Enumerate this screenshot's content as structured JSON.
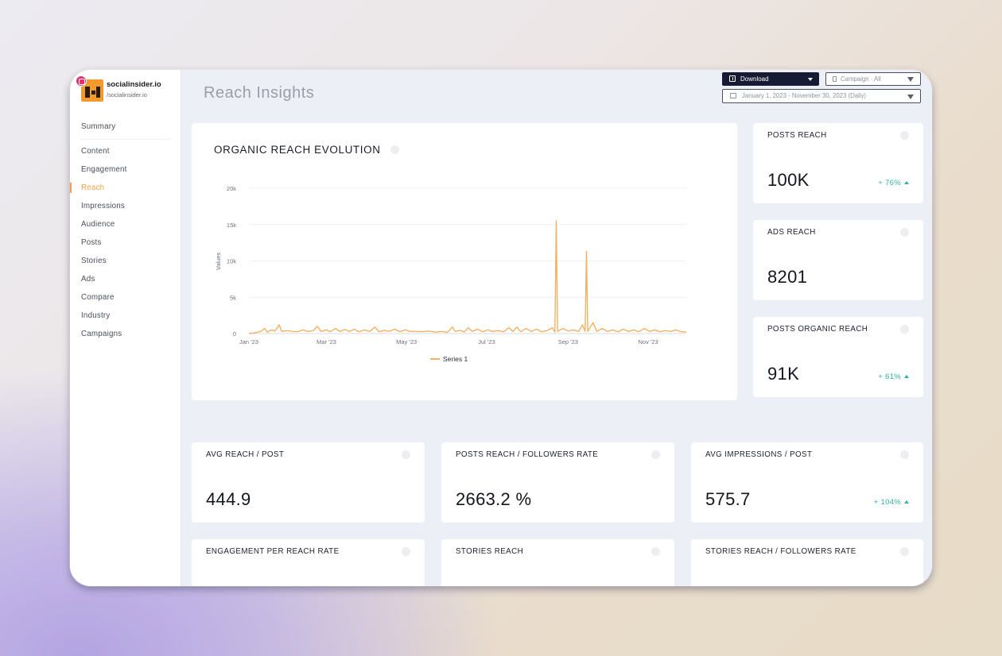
{
  "page": {
    "title": "Reach Insights",
    "accent_color": "#f0a346"
  },
  "profile": {
    "name": "socialinsider.io",
    "handle": "/socialinsider.io",
    "network_icon": "instagram-icon"
  },
  "sidebar": {
    "items": [
      {
        "label": "Summary"
      },
      {
        "label": "Content"
      },
      {
        "label": "Engagement"
      },
      {
        "label": "Reach",
        "active": true
      },
      {
        "label": "Impressions"
      },
      {
        "label": "Audience"
      },
      {
        "label": "Posts"
      },
      {
        "label": "Stories"
      },
      {
        "label": "Ads"
      },
      {
        "label": "Compare"
      },
      {
        "label": "Industry"
      },
      {
        "label": "Campaigns"
      }
    ]
  },
  "toolbar": {
    "download_label": "Download",
    "campaign_value": "Campaign · All",
    "date_range_value": "January 1, 2023 - November 30, 2023 (Daily)"
  },
  "metrics": {
    "posts_reach": {
      "title": "POSTS REACH",
      "value": "100K",
      "change": "+ 76%"
    },
    "ads_reach": {
      "title": "ADS REACH",
      "value": "8201"
    },
    "posts_organic_reach": {
      "title": "POSTS ORGANIC REACH",
      "value": "91K",
      "change": "+ 61%"
    },
    "avg_reach_post": {
      "title": "AVG REACH / POST",
      "value": "444.9"
    },
    "posts_reach_followers_rate": {
      "title": "POSTS REACH / FOLLOWERS RATE",
      "value": "2663.2 %"
    },
    "avg_impressions_post": {
      "title": "AVG IMPRESSIONS / POST",
      "value": "575.7",
      "change": "+ 104%"
    },
    "engagement_per_reach_rate": {
      "title": "ENGAGEMENT PER REACH RATE"
    },
    "stories_reach": {
      "title": "STORIES REACH"
    },
    "stories_reach_followers_rate": {
      "title": "STORIES REACH / FOLLOWERS RATE"
    }
  },
  "chart_data": {
    "type": "line",
    "title": "ORGANIC REACH EVOLUTION",
    "ylabel": "Values",
    "xlabel": "",
    "ylim": [
      0,
      20000
    ],
    "y_ticks": [
      "0",
      "5k",
      "10k",
      "15k",
      "20k"
    ],
    "x_tick_labels": [
      "Jan '23",
      "Mar '23",
      "May '23",
      "Jul '23",
      "Sep '23",
      "Nov '23"
    ],
    "x_tick_dates": [
      "2023-01-01",
      "2023-03-01",
      "2023-05-01",
      "2023-07-01",
      "2023-09-01",
      "2023-11-01"
    ],
    "x_range": [
      "2023-01-01",
      "2023-11-30"
    ],
    "grid": true,
    "legend_position": "bottom",
    "line_color": "#f3b062",
    "series": [
      {
        "name": "Series 1",
        "points": [
          [
            "2023-01-01",
            0
          ],
          [
            "2023-01-06",
            120
          ],
          [
            "2023-01-10",
            300
          ],
          [
            "2023-01-13",
            700
          ],
          [
            "2023-01-15",
            200
          ],
          [
            "2023-01-18",
            500
          ],
          [
            "2023-01-21",
            350
          ],
          [
            "2023-01-24",
            1200
          ],
          [
            "2023-01-26",
            300
          ],
          [
            "2023-01-30",
            400
          ],
          [
            "2023-02-03",
            300
          ],
          [
            "2023-02-07",
            250
          ],
          [
            "2023-02-11",
            500
          ],
          [
            "2023-02-15",
            300
          ],
          [
            "2023-02-19",
            400
          ],
          [
            "2023-02-22",
            1000
          ],
          [
            "2023-02-25",
            300
          ],
          [
            "2023-03-01",
            500
          ],
          [
            "2023-03-04",
            250
          ],
          [
            "2023-03-08",
            700
          ],
          [
            "2023-03-11",
            300
          ],
          [
            "2023-03-15",
            550
          ],
          [
            "2023-03-19",
            300
          ],
          [
            "2023-03-22",
            600
          ],
          [
            "2023-03-26",
            250
          ],
          [
            "2023-03-30",
            500
          ],
          [
            "2023-04-03",
            300
          ],
          [
            "2023-04-07",
            900
          ],
          [
            "2023-04-10",
            250
          ],
          [
            "2023-04-14",
            450
          ],
          [
            "2023-04-18",
            300
          ],
          [
            "2023-04-22",
            600
          ],
          [
            "2023-04-26",
            250
          ],
          [
            "2023-04-30",
            500
          ],
          [
            "2023-05-04",
            300
          ],
          [
            "2023-05-08",
            300
          ],
          [
            "2023-05-13",
            250
          ],
          [
            "2023-05-18",
            350
          ],
          [
            "2023-05-23",
            200
          ],
          [
            "2023-05-28",
            300
          ],
          [
            "2023-06-01",
            150
          ],
          [
            "2023-06-05",
            900
          ],
          [
            "2023-06-07",
            300
          ],
          [
            "2023-06-11",
            450
          ],
          [
            "2023-06-14",
            200
          ],
          [
            "2023-06-17",
            800
          ],
          [
            "2023-06-20",
            300
          ],
          [
            "2023-06-24",
            600
          ],
          [
            "2023-06-28",
            250
          ],
          [
            "2023-07-02",
            500
          ],
          [
            "2023-07-05",
            300
          ],
          [
            "2023-07-10",
            400
          ],
          [
            "2023-07-14",
            250
          ],
          [
            "2023-07-18",
            800
          ],
          [
            "2023-07-21",
            300
          ],
          [
            "2023-07-24",
            900
          ],
          [
            "2023-07-27",
            250
          ],
          [
            "2023-07-31",
            700
          ],
          [
            "2023-08-04",
            300
          ],
          [
            "2023-08-08",
            600
          ],
          [
            "2023-08-12",
            250
          ],
          [
            "2023-08-16",
            400
          ],
          [
            "2023-08-20",
            800
          ],
          [
            "2023-08-22",
            200
          ],
          [
            "2023-08-23",
            15500
          ],
          [
            "2023-08-24",
            300
          ],
          [
            "2023-08-28",
            700
          ],
          [
            "2023-09-01",
            350
          ],
          [
            "2023-09-05",
            500
          ],
          [
            "2023-09-09",
            300
          ],
          [
            "2023-09-12",
            1200
          ],
          [
            "2023-09-14",
            300
          ],
          [
            "2023-09-15",
            11300
          ],
          [
            "2023-09-16",
            300
          ],
          [
            "2023-09-20",
            1500
          ],
          [
            "2023-09-23",
            300
          ],
          [
            "2023-09-27",
            700
          ],
          [
            "2023-10-01",
            300
          ],
          [
            "2023-10-05",
            500
          ],
          [
            "2023-10-09",
            250
          ],
          [
            "2023-10-13",
            600
          ],
          [
            "2023-10-17",
            300
          ],
          [
            "2023-10-21",
            500
          ],
          [
            "2023-10-25",
            250
          ],
          [
            "2023-10-29",
            700
          ],
          [
            "2023-11-02",
            300
          ],
          [
            "2023-11-06",
            500
          ],
          [
            "2023-11-10",
            250
          ],
          [
            "2023-11-14",
            400
          ],
          [
            "2023-11-18",
            300
          ],
          [
            "2023-11-22",
            500
          ],
          [
            "2023-11-26",
            250
          ],
          [
            "2023-11-30",
            200
          ]
        ]
      }
    ]
  }
}
